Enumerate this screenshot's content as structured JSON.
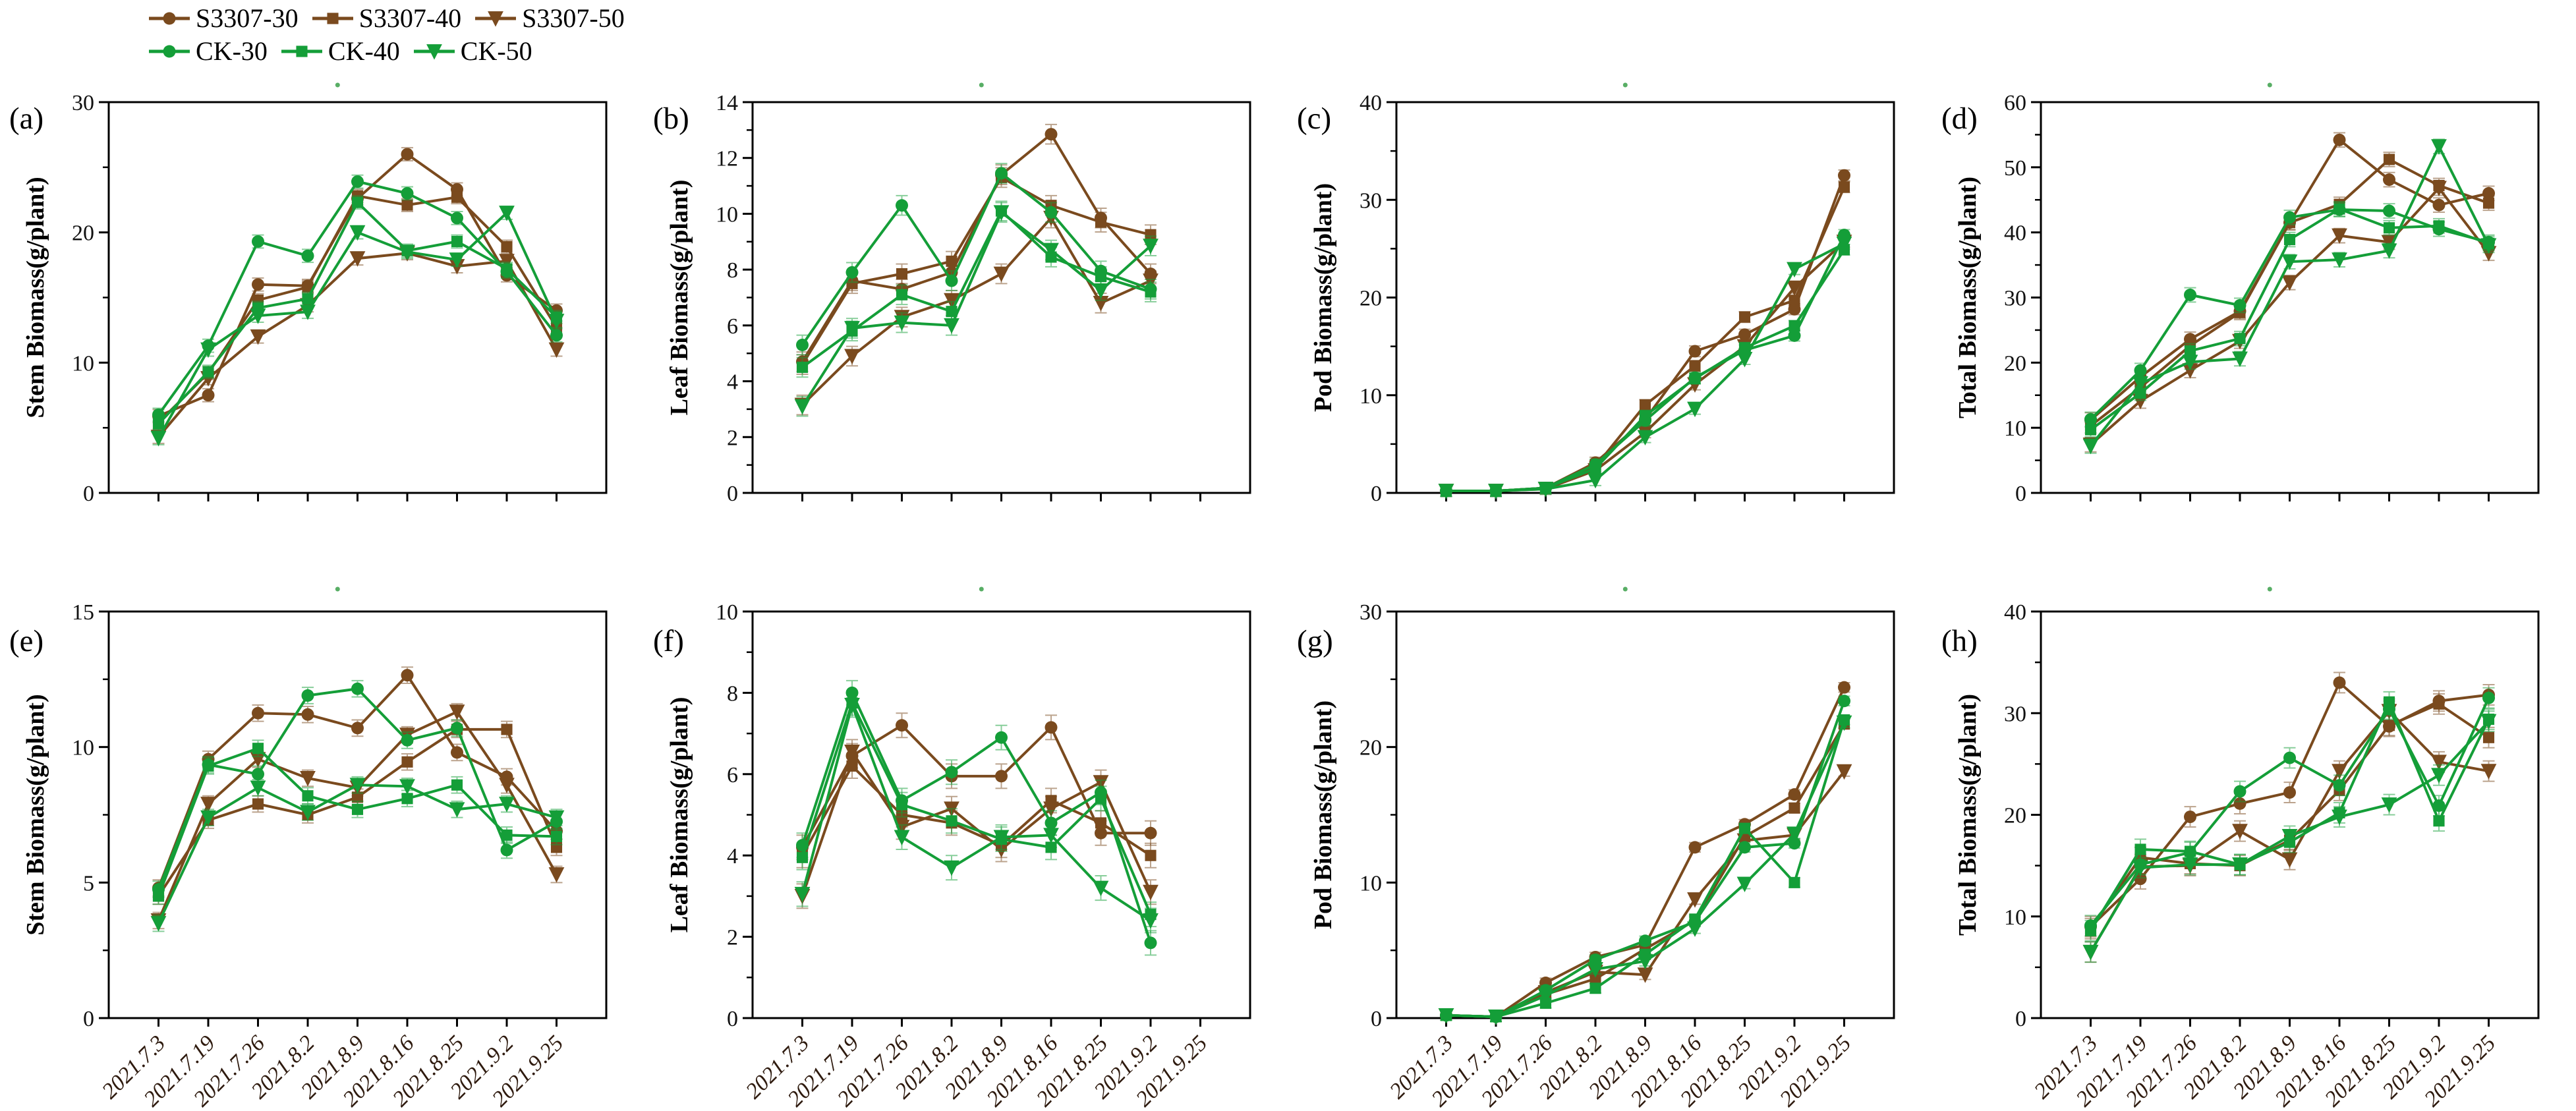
{
  "legend": {
    "entries": [
      {
        "label": "S3307-30",
        "color": "#7A4A1E",
        "marker": "circle"
      },
      {
        "label": "S3307-40",
        "color": "#7A4A1E",
        "marker": "square"
      },
      {
        "label": "S3307-50",
        "color": "#7A4A1E",
        "marker": "triangle-down"
      },
      {
        "label": "CK-30",
        "color": "#149E38",
        "marker": "circle"
      },
      {
        "label": "CK-40",
        "color": "#149E38",
        "marker": "square"
      },
      {
        "label": "CK-50",
        "color": "#149E38",
        "marker": "triangle-down"
      }
    ]
  },
  "colors": {
    "s3307_brown": "#7A4A1E",
    "ck_green": "#149E38",
    "axis": "#000000",
    "stray_dot": "#3BA04A"
  },
  "x_labels": [
    "2021.7.3",
    "2021.7.19",
    "2021.7.26",
    "2021.8.2",
    "2021.8.9",
    "2021.8.16",
    "2021.8.25",
    "2021.9.2",
    "2021.9.25"
  ],
  "chart_data": [
    {
      "id": "a",
      "panel_label": "(a)",
      "type": "line",
      "ylabel": "Stem Biomass(g/plant)",
      "ylim": [
        0,
        30
      ],
      "yticks": [
        0,
        10,
        20,
        30
      ],
      "x_tick_labels_visible": false,
      "err": 0.5,
      "series": [
        {
          "name": "S3307-30",
          "values": [
            5.9,
            7.5,
            16.0,
            15.9,
            22.6,
            26.0,
            23.3,
            16.7,
            14.0
          ]
        },
        {
          "name": "S3307-40",
          "values": [
            5.4,
            9.2,
            14.8,
            15.8,
            22.8,
            22.1,
            22.7,
            18.9,
            12.7
          ]
        },
        {
          "name": "S3307-50",
          "values": [
            4.3,
            8.8,
            12.0,
            14.4,
            18.0,
            18.4,
            17.4,
            17.8,
            11.0
          ]
        },
        {
          "name": "CK-30",
          "values": [
            6.0,
            11.3,
            19.3,
            18.2,
            23.9,
            23.0,
            21.1,
            17.0,
            12.1
          ]
        },
        {
          "name": "CK-40",
          "values": [
            5.3,
            9.3,
            14.2,
            14.9,
            22.3,
            18.6,
            19.3,
            17.2,
            13.5
          ]
        },
        {
          "name": "CK-50",
          "values": [
            4.2,
            11.0,
            13.6,
            13.9,
            20.0,
            18.5,
            17.9,
            21.5,
            13.2
          ]
        }
      ]
    },
    {
      "id": "b",
      "panel_label": "(b)",
      "type": "line",
      "ylabel": "Leaf Biomass(g/plant)",
      "ylim": [
        0,
        14
      ],
      "yticks": [
        0,
        2,
        4,
        6,
        8,
        10,
        12,
        14
      ],
      "x_tick_labels_visible": false,
      "err": 0.35,
      "series": [
        {
          "name": "S3307-30",
          "values": [
            4.7,
            7.6,
            7.3,
            7.9,
            11.4,
            12.85,
            9.85,
            7.85,
            null
          ]
        },
        {
          "name": "S3307-40",
          "values": [
            4.6,
            7.5,
            7.85,
            8.3,
            11.3,
            10.3,
            9.7,
            9.25,
            null
          ]
        },
        {
          "name": "S3307-50",
          "values": [
            3.15,
            4.9,
            6.3,
            6.9,
            7.85,
            9.85,
            6.8,
            7.6,
            null
          ]
        },
        {
          "name": "CK-30",
          "values": [
            5.3,
            7.9,
            10.3,
            7.6,
            11.45,
            10.05,
            7.95,
            7.3,
            null
          ]
        },
        {
          "name": "CK-40",
          "values": [
            4.5,
            5.8,
            7.1,
            6.5,
            10.1,
            8.45,
            7.75,
            7.2,
            null
          ]
        },
        {
          "name": "CK-50",
          "values": [
            3.1,
            5.9,
            6.1,
            6.0,
            10.05,
            8.7,
            7.25,
            8.85,
            null
          ]
        }
      ]
    },
    {
      "id": "c",
      "panel_label": "(c)",
      "type": "line",
      "ylabel": "Pod Biomass(g/plant)",
      "ylim": [
        0,
        40
      ],
      "yticks": [
        0,
        10,
        20,
        30,
        40
      ],
      "x_tick_labels_visible": false,
      "err": 0.55,
      "series": [
        {
          "name": "S3307-30",
          "values": [
            0.2,
            0.2,
            0.5,
            3.1,
            7.5,
            14.5,
            16.2,
            18.8,
            32.5
          ]
        },
        {
          "name": "S3307-40",
          "values": [
            0.2,
            0.2,
            0.5,
            2.7,
            9.0,
            13.0,
            18.0,
            19.7,
            31.3
          ]
        },
        {
          "name": "S3307-50",
          "values": [
            0.2,
            0.2,
            0.4,
            2.3,
            6.2,
            11.1,
            15.0,
            21.0,
            25.7
          ]
        },
        {
          "name": "CK-30",
          "values": [
            0.2,
            0.2,
            0.5,
            2.9,
            7.4,
            11.8,
            14.6,
            16.1,
            26.4
          ]
        },
        {
          "name": "CK-40",
          "values": [
            0.2,
            0.2,
            0.5,
            2.5,
            7.9,
            11.7,
            14.85,
            17.1,
            24.9
          ]
        },
        {
          "name": "CK-50",
          "values": [
            0.2,
            0.2,
            0.4,
            1.3,
            5.7,
            8.6,
            13.7,
            22.9,
            25.5
          ]
        }
      ]
    },
    {
      "id": "d",
      "panel_label": "(d)",
      "type": "line",
      "ylabel": "Total Biomass(g/plant)",
      "ylim": [
        0,
        60
      ],
      "yticks": [
        0,
        10,
        20,
        30,
        40,
        50,
        60
      ],
      "x_tick_labels_visible": false,
      "err": 1.1,
      "series": [
        {
          "name": "S3307-30",
          "values": [
            11.2,
            17.8,
            23.6,
            27.9,
            41.5,
            54.2,
            48.1,
            44.2,
            46.0
          ]
        },
        {
          "name": "S3307-40",
          "values": [
            10.3,
            16.2,
            22.6,
            27.7,
            41.5,
            44.3,
            51.2,
            47.2,
            44.5
          ]
        },
        {
          "name": "S3307-50",
          "values": [
            7.4,
            14.1,
            18.8,
            23.3,
            32.3,
            39.5,
            38.5,
            46.8,
            36.8
          ]
        },
        {
          "name": "CK-30",
          "values": [
            11.3,
            18.8,
            30.4,
            28.8,
            42.3,
            43.5,
            43.3,
            40.5,
            38.5
          ]
        },
        {
          "name": "CK-40",
          "values": [
            9.7,
            15.3,
            21.8,
            23.7,
            38.9,
            43.6,
            40.7,
            41.0,
            38.3
          ]
        },
        {
          "name": "CK-50",
          "values": [
            7.2,
            16.8,
            20.1,
            20.6,
            35.5,
            35.8,
            37.2,
            53.2,
            38.0
          ]
        }
      ]
    },
    {
      "id": "e",
      "panel_label": "(e)",
      "type": "line",
      "ylabel": "Stem Biomass(g/plant)",
      "ylim": [
        0,
        15
      ],
      "yticks": [
        0,
        5,
        10,
        15
      ],
      "x_tick_labels_visible": true,
      "err": 0.3,
      "series": [
        {
          "name": "S3307-30",
          "values": [
            4.8,
            9.55,
            11.25,
            11.2,
            10.7,
            12.65,
            9.8,
            8.9,
            6.9
          ]
        },
        {
          "name": "S3307-40",
          "values": [
            4.5,
            7.3,
            7.9,
            7.5,
            8.15,
            9.45,
            10.65,
            10.65,
            6.3
          ]
        },
        {
          "name": "S3307-50",
          "values": [
            3.6,
            7.9,
            9.55,
            8.85,
            8.5,
            10.45,
            11.3,
            8.6,
            5.3
          ]
        },
        {
          "name": "CK-30",
          "values": [
            4.75,
            9.35,
            9.0,
            11.9,
            12.15,
            10.25,
            10.7,
            6.2,
            7.25
          ]
        },
        {
          "name": "CK-40",
          "values": [
            4.5,
            9.3,
            9.95,
            8.2,
            7.7,
            8.1,
            8.6,
            6.75,
            6.7
          ]
        },
        {
          "name": "CK-50",
          "values": [
            3.5,
            7.4,
            8.5,
            7.6,
            8.6,
            8.55,
            7.7,
            7.9,
            7.4
          ]
        }
      ]
    },
    {
      "id": "f",
      "panel_label": "(f)",
      "type": "line",
      "ylabel": "Leaf Biomass(g/plant)",
      "ylim": [
        0,
        10
      ],
      "yticks": [
        0,
        2,
        4,
        6,
        8,
        10
      ],
      "x_tick_labels_visible": true,
      "err": 0.3,
      "series": [
        {
          "name": "S3307-30",
          "values": [
            4.2,
            6.45,
            7.2,
            5.95,
            5.95,
            7.15,
            4.55,
            4.55,
            null
          ]
        },
        {
          "name": "S3307-40",
          "values": [
            4.0,
            6.2,
            5.0,
            4.8,
            4.25,
            5.35,
            4.8,
            4.0,
            null
          ]
        },
        {
          "name": "S3307-50",
          "values": [
            3.0,
            6.55,
            4.7,
            5.15,
            4.15,
            5.15,
            5.8,
            3.1,
            null
          ]
        },
        {
          "name": "CK-30",
          "values": [
            4.25,
            8.0,
            5.35,
            6.05,
            6.9,
            4.8,
            5.55,
            1.85,
            null
          ]
        },
        {
          "name": "CK-40",
          "values": [
            3.95,
            7.75,
            5.25,
            4.85,
            4.4,
            4.2,
            5.4,
            2.55,
            null
          ]
        },
        {
          "name": "CK-50",
          "values": [
            3.05,
            7.7,
            4.45,
            3.7,
            4.45,
            4.5,
            3.2,
            2.4,
            null
          ]
        }
      ]
    },
    {
      "id": "g",
      "panel_label": "(g)",
      "type": "line",
      "ylabel": "Pod Biomass(g/plant)",
      "ylim": [
        0,
        30
      ],
      "yticks": [
        0,
        10,
        20,
        30
      ],
      "x_tick_labels_visible": true,
      "err": 0.35,
      "series": [
        {
          "name": "S3307-30",
          "values": [
            0.2,
            0.1,
            2.6,
            4.5,
            5.4,
            12.6,
            14.3,
            16.5,
            24.4
          ]
        },
        {
          "name": "S3307-40",
          "values": [
            0.2,
            0.1,
            1.75,
            2.9,
            5.1,
            7.2,
            13.4,
            15.5,
            21.7
          ]
        },
        {
          "name": "S3307-50",
          "values": [
            0.2,
            0.1,
            1.9,
            3.4,
            3.2,
            8.75,
            13.1,
            13.5,
            18.2
          ]
        },
        {
          "name": "CK-30",
          "values": [
            0.2,
            0.1,
            2.05,
            4.3,
            5.7,
            7.1,
            12.6,
            12.9,
            23.4
          ]
        },
        {
          "name": "CK-40",
          "values": [
            0.2,
            0.1,
            1.1,
            2.2,
            4.7,
            7.3,
            14.0,
            10.0,
            22.0
          ]
        },
        {
          "name": "CK-50",
          "values": [
            0.2,
            0.1,
            1.65,
            3.6,
            4.2,
            6.6,
            9.9,
            13.6,
            21.8
          ]
        }
      ]
    },
    {
      "id": "h",
      "panel_label": "(h)",
      "type": "line",
      "ylabel": "Total Biomass(g/plant)",
      "ylim": [
        0,
        40
      ],
      "yticks": [
        0,
        10,
        20,
        30,
        40
      ],
      "x_tick_labels_visible": true,
      "err": 1.0,
      "series": [
        {
          "name": "S3307-30",
          "values": [
            9.0,
            13.7,
            19.8,
            21.1,
            22.2,
            33.0,
            28.7,
            31.2,
            31.8
          ]
        },
        {
          "name": "S3307-40",
          "values": [
            8.8,
            15.8,
            15.2,
            15.0,
            17.5,
            22.4,
            28.8,
            30.9,
            27.6
          ]
        },
        {
          "name": "S3307-50",
          "values": [
            6.5,
            14.9,
            15.0,
            18.4,
            15.6,
            24.3,
            30.2,
            25.2,
            24.3
          ]
        },
        {
          "name": "CK-30",
          "values": [
            9.1,
            15.1,
            16.3,
            22.3,
            25.6,
            22.9,
            30.4,
            20.9,
            31.5
          ]
        },
        {
          "name": "CK-40",
          "values": [
            8.6,
            16.6,
            16.4,
            15.1,
            17.3,
            20.2,
            31.1,
            19.4,
            29.4
          ]
        },
        {
          "name": "CK-50",
          "values": [
            6.5,
            14.8,
            15.1,
            15.1,
            17.9,
            19.8,
            21.0,
            23.9,
            29.2
          ]
        }
      ]
    }
  ]
}
